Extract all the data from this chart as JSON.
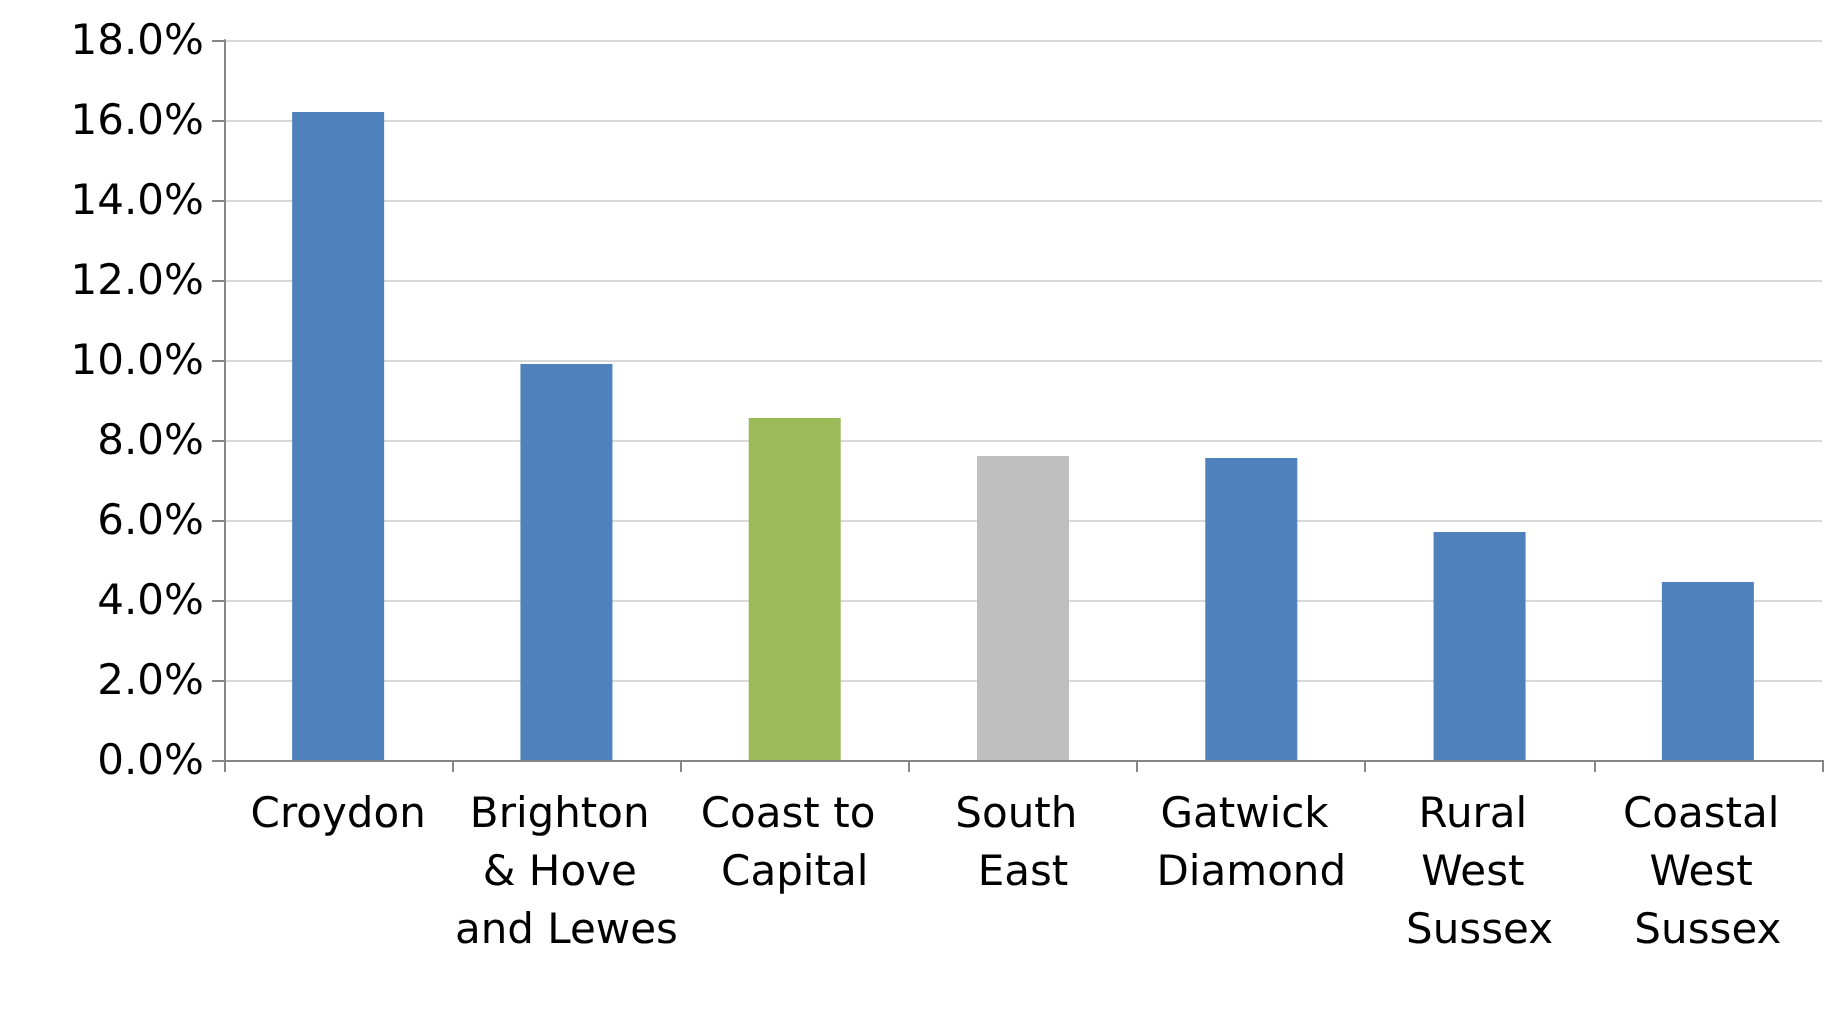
{
  "chart_data": {
    "type": "bar",
    "categories": [
      "Croydon",
      "Brighton & Hove and Lewes",
      "Coast to Capital",
      "South East",
      "Gatwick Diamond",
      "Rural West Sussex",
      "Coastal West Sussex"
    ],
    "values": [
      16.2,
      9.9,
      8.55,
      7.6,
      7.55,
      5.7,
      4.45
    ],
    "colors": [
      "#4f81bd",
      "#4f81bd",
      "#9bbb59",
      "#bfbfbf",
      "#4f81bd",
      "#4f81bd",
      "#4f81bd"
    ],
    "ylim": [
      0,
      18
    ],
    "yticks": [
      {
        "value": 0,
        "label": "0.0%"
      },
      {
        "value": 2,
        "label": "2.0%"
      },
      {
        "value": 4,
        "label": "4.0%"
      },
      {
        "value": 6,
        "label": "6.0%"
      },
      {
        "value": 8,
        "label": "8.0%"
      },
      {
        "value": 10,
        "label": "10.0%"
      },
      {
        "value": 12,
        "label": "12.0%"
      },
      {
        "value": 14,
        "label": "14.0%"
      },
      {
        "value": 16,
        "label": "16.0%"
      },
      {
        "value": 18,
        "label": "18.0%"
      }
    ],
    "grid": "y"
  }
}
